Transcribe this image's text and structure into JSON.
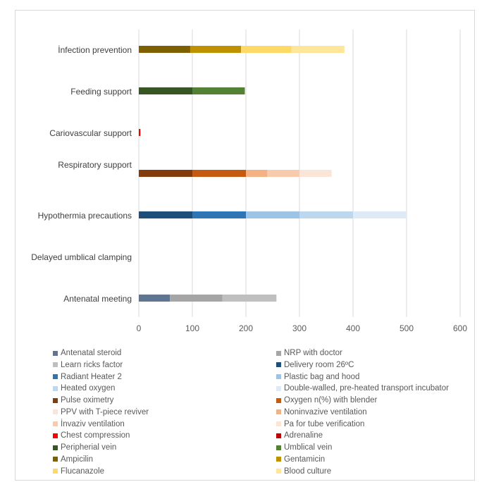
{
  "chart_data": {
    "type": "bar",
    "orientation": "horizontal",
    "stacked": true,
    "xlim": [
      0,
      600
    ],
    "xticks": [
      "0",
      "100",
      "200",
      "300",
      "400",
      "500",
      "600"
    ],
    "grid": true,
    "legend_position": "bottom",
    "categories": [
      "İnfection prevention",
      "Feeding support",
      "Cariovascular support",
      "Respiratory support",
      "Hypothermia precautions",
      "Delayed umblical clamping",
      "Antenatal meeting"
    ],
    "series": [
      {
        "name": "Antenatal steroid",
        "color": "#5f7591",
        "values": [
          0,
          0,
          0,
          0,
          0,
          0,
          58
        ]
      },
      {
        "name": "NRP with doctor",
        "color": "#a5a5a5",
        "values": [
          0,
          0,
          0,
          0,
          0,
          0,
          98
        ]
      },
      {
        "name": "Learn ricks factor",
        "color": "#bfbfbf",
        "values": [
          0,
          0,
          0,
          0,
          0,
          0,
          101
        ]
      },
      {
        "name": "Delivery room 26ºC",
        "color": "#1f4e79",
        "values": [
          0,
          0,
          0,
          0,
          100,
          0,
          0
        ]
      },
      {
        "name": "Radiant Heater 2",
        "color": "#2e75b6",
        "values": [
          0,
          0,
          0,
          0,
          100,
          0,
          0
        ]
      },
      {
        "name": "Plastic bag and hood",
        "color": "#9dc3e6",
        "values": [
          0,
          0,
          0,
          0,
          100,
          0,
          0
        ]
      },
      {
        "name": "Heated oxygen",
        "color": "#bdd7ee",
        "values": [
          0,
          0,
          0,
          0,
          100,
          0,
          0
        ]
      },
      {
        "name": "Double-walled, pre-heated transport incubator",
        "color": "#deebf7",
        "values": [
          0,
          0,
          0,
          0,
          100,
          0,
          0
        ]
      },
      {
        "name": "Pulse oximetry",
        "color": "#843c0c",
        "values": [
          0,
          0,
          0,
          100,
          0,
          0,
          0
        ]
      },
      {
        "name": "Oxygen n(%) with blender",
        "color": "#c55a11",
        "values": [
          0,
          0,
          0,
          100,
          0,
          0,
          0
        ]
      },
      {
        "name": "PPV with T-piece reviver",
        "color": "#fbe5d6",
        "values": [
          0,
          0,
          0,
          0,
          0,
          0,
          0
        ]
      },
      {
        "name": "Noninvazive ventilation",
        "color": "#f4b183",
        "values": [
          0,
          0,
          0,
          40,
          0,
          0,
          0
        ]
      },
      {
        "name": "İnvaziv ventilation",
        "color": "#f8cbad",
        "values": [
          0,
          0,
          0,
          60,
          0,
          0,
          0
        ]
      },
      {
        "name": "Pa for tube verification",
        "color": "#fbe5d6",
        "values": [
          0,
          0,
          0,
          60,
          0,
          0,
          0
        ]
      },
      {
        "name": "Chest compression",
        "color": "#ff0000",
        "values": [
          0,
          0,
          2,
          0,
          0,
          0,
          0
        ]
      },
      {
        "name": "Adrenaline",
        "color": "#c00000",
        "values": [
          0,
          0,
          1,
          0,
          0,
          0,
          0
        ]
      },
      {
        "name": "Peripherial vein",
        "color": "#375623",
        "values": [
          0,
          100,
          0,
          0,
          0,
          0,
          0
        ]
      },
      {
        "name": "Umblical vein",
        "color": "#548235",
        "values": [
          0,
          98,
          0,
          0,
          0,
          0,
          0
        ]
      },
      {
        "name": "Ampicilin",
        "color": "#7f6000",
        "values": [
          96,
          0,
          0,
          0,
          0,
          0,
          0
        ]
      },
      {
        "name": "Gentamicin",
        "color": "#bf9000",
        "values": [
          95,
          0,
          0,
          0,
          0,
          0,
          0
        ]
      },
      {
        "name": "Flucanazole",
        "color": "#ffd966",
        "values": [
          94,
          0,
          0,
          0,
          0,
          0,
          0
        ]
      },
      {
        "name": "Blood culture",
        "color": "#ffe699",
        "values": [
          99,
          0,
          0,
          0,
          0,
          0,
          0
        ]
      }
    ]
  }
}
